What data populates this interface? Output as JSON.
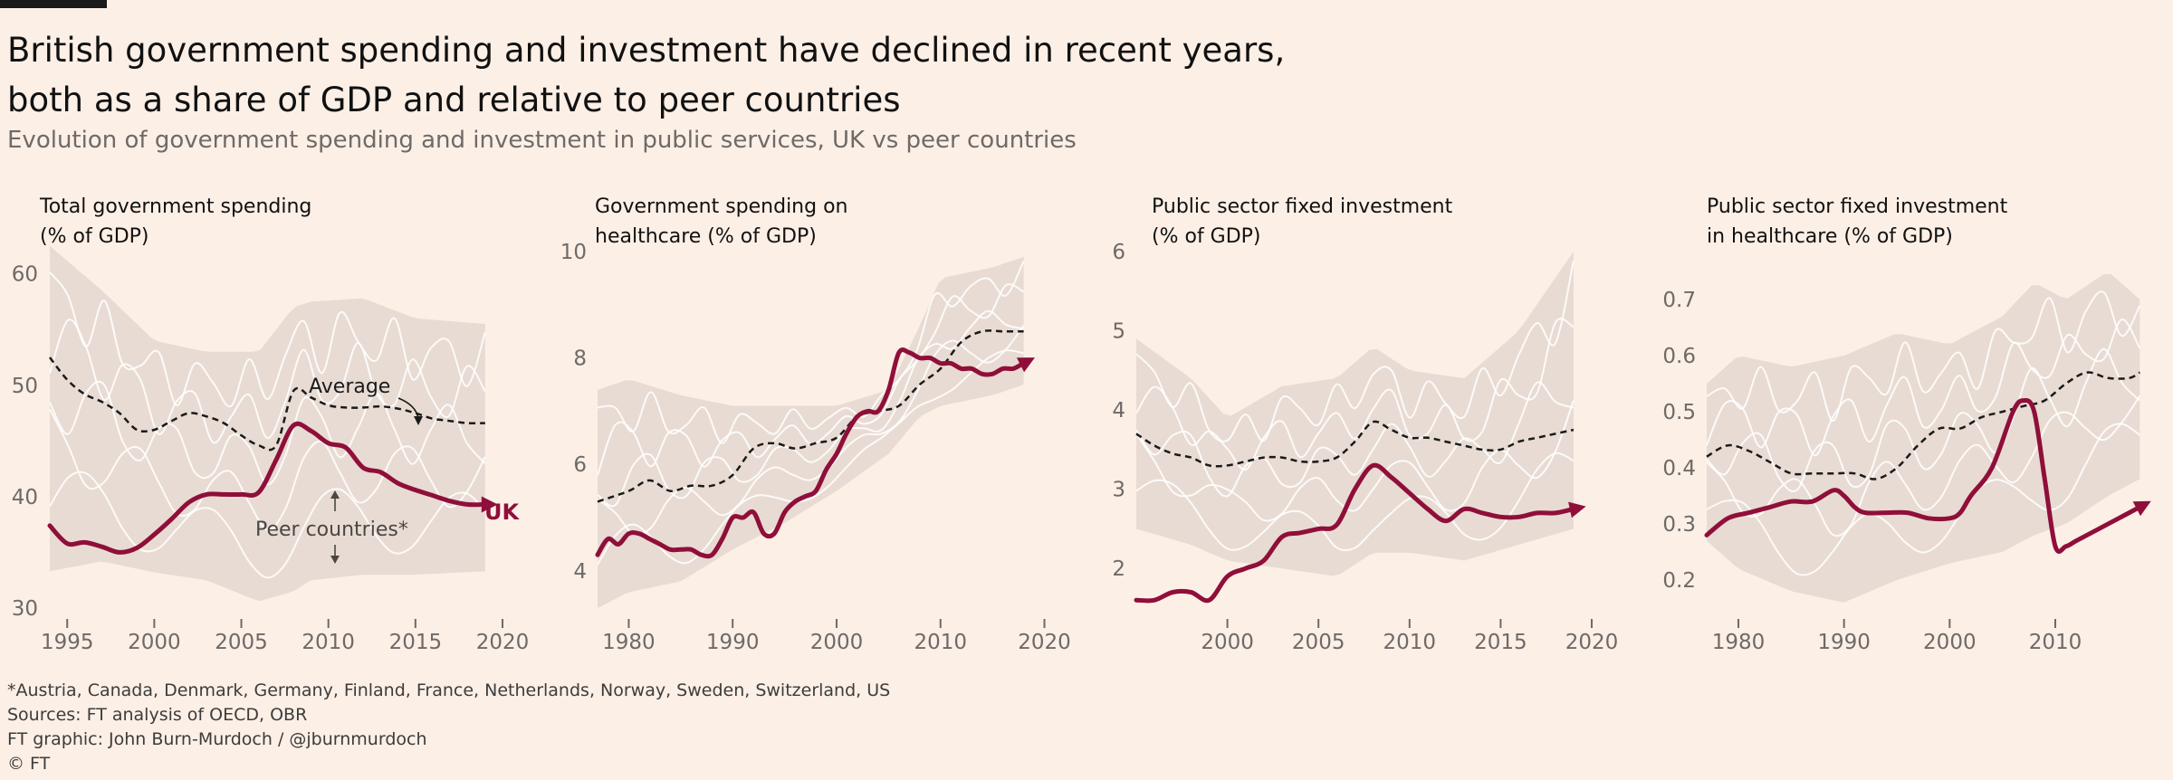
{
  "header": {
    "title_line1": "British government spending and investment have declined in recent years,",
    "title_line2": "both as a share of GDP and relative to peer countries",
    "subtitle": "Evolution of government spending and investment in public services, UK vs peer countries"
  },
  "colors": {
    "background": "#fcefe6",
    "uk_line": "#8f0f3a",
    "average_line": "#1a1a1a",
    "peer_band": "#e8dbd3",
    "peer_lines": "#ffffff"
  },
  "annotations": {
    "average": "Average",
    "peer_countries": "Peer countries*",
    "uk": "UK"
  },
  "footer": {
    "note": "*Austria, Canada, Denmark, Germany, Finland, France, Netherlands, Norway, Sweden, Switzerland, US",
    "sources": "Sources: FT analysis of OECD, OBR",
    "credit": "FT graphic: John Burn-Murdoch / @jburnmurdoch",
    "copyright": "© FT"
  },
  "chart_data": [
    {
      "type": "line",
      "title": "Total government spending",
      "title_unit": "(% of GDP)",
      "xlim": [
        1994,
        2020
      ],
      "ylim": [
        30,
        62
      ],
      "x_ticks": [
        1995,
        2000,
        2005,
        2010,
        2015,
        2020
      ],
      "y_ticks": [
        30,
        40,
        50,
        60
      ],
      "series": [
        {
          "name": "UK",
          "x": [
            1994,
            1995,
            1996,
            1997,
            1998,
            1999,
            2000,
            2001,
            2002,
            2003,
            2004,
            2005,
            2006,
            2007,
            2008,
            2009,
            2010,
            2011,
            2012,
            2013,
            2014,
            2015,
            2016,
            2017,
            2018,
            2019
          ],
          "y": [
            37.4,
            35.8,
            35.9,
            35.5,
            35.0,
            35.4,
            36.6,
            38.0,
            39.5,
            40.2,
            40.2,
            40.2,
            40.4,
            43.3,
            46.4,
            45.9,
            44.8,
            44.4,
            42.6,
            42.2,
            41.2,
            40.6,
            40.1,
            39.6,
            39.3,
            39.3
          ]
        },
        {
          "name": "Average",
          "x": [
            1994,
            1995,
            1996,
            1997,
            1998,
            1999,
            2000,
            2001,
            2002,
            2003,
            2004,
            2005,
            2006,
            2007,
            2008,
            2009,
            2010,
            2011,
            2012,
            2013,
            2014,
            2015,
            2016,
            2017,
            2018,
            2019
          ],
          "y": [
            52.5,
            50.5,
            49.2,
            48.5,
            47.5,
            46.0,
            46.0,
            46.8,
            47.5,
            47.2,
            46.6,
            45.5,
            44.6,
            44.6,
            49.5,
            48.9,
            48.2,
            48.0,
            48.0,
            48.1,
            47.9,
            47.5,
            47.0,
            46.8,
            46.6,
            46.6
          ]
        }
      ],
      "peer_band": {
        "x": [
          1994,
          1997,
          2000,
          2003,
          2006,
          2008,
          2009,
          2012,
          2015,
          2019
        ],
        "upper": [
          62.5,
          58.5,
          54,
          53,
          53,
          57,
          57.5,
          57.8,
          56,
          55.5
        ],
        "lower": [
          33.3,
          34.2,
          33.2,
          32.5,
          30.6,
          31.5,
          32.5,
          33,
          33,
          33.3
        ]
      }
    },
    {
      "type": "line",
      "title": "Government spending on",
      "title_unit": "healthcare (% of GDP)",
      "xlim": [
        1977,
        2021
      ],
      "ylim": [
        3.3,
        10
      ],
      "x_ticks": [
        1980,
        1990,
        2000,
        2010,
        2020
      ],
      "y_ticks": [
        4,
        6,
        8,
        10
      ],
      "series": [
        {
          "name": "UK",
          "x": [
            1977,
            1978,
            1979,
            1980,
            1981,
            1982,
            1983,
            1984,
            1985,
            1986,
            1987,
            1988,
            1989,
            1990,
            1991,
            1992,
            1993,
            1994,
            1995,
            1996,
            1997,
            1998,
            1999,
            2000,
            2001,
            2002,
            2003,
            2004,
            2005,
            2006,
            2007,
            2008,
            2009,
            2010,
            2011,
            2012,
            2013,
            2014,
            2015,
            2016,
            2017,
            2018
          ],
          "y": [
            4.3,
            4.6,
            4.5,
            4.7,
            4.7,
            4.6,
            4.5,
            4.4,
            4.4,
            4.4,
            4.3,
            4.3,
            4.6,
            5.0,
            5.0,
            5.1,
            4.7,
            4.7,
            5.1,
            5.3,
            5.4,
            5.5,
            5.9,
            6.2,
            6.6,
            6.9,
            7.0,
            7.0,
            7.4,
            8.1,
            8.1,
            8.0,
            8.0,
            7.9,
            7.9,
            7.8,
            7.8,
            7.7,
            7.7,
            7.8,
            7.8,
            7.9
          ]
        },
        {
          "name": "Average",
          "x": [
            1977,
            1980,
            1982,
            1984,
            1986,
            1988,
            1990,
            1992,
            1994,
            1996,
            1998,
            2000,
            2002,
            2004,
            2006,
            2008,
            2010,
            2012,
            2014,
            2016,
            2018
          ],
          "y": [
            5.3,
            5.5,
            5.7,
            5.5,
            5.6,
            5.6,
            5.8,
            6.3,
            6.4,
            6.3,
            6.4,
            6.5,
            6.9,
            7.0,
            7.1,
            7.5,
            7.8,
            8.3,
            8.5,
            8.5,
            8.5
          ]
        }
      ],
      "peer_band": {
        "x": [
          1977,
          1980,
          1985,
          1990,
          1995,
          2000,
          2005,
          2008,
          2010,
          2015,
          2018
        ],
        "upper": [
          7.4,
          7.6,
          7.3,
          7.1,
          7.1,
          7.1,
          7.4,
          8.6,
          9.5,
          9.7,
          9.9
        ],
        "lower": [
          3.3,
          3.6,
          3.8,
          4.4,
          4.9,
          5.5,
          6.2,
          6.9,
          7.1,
          7.3,
          7.5
        ]
      }
    },
    {
      "type": "line",
      "title": "Public sector fixed investment",
      "title_unit": "(% of GDP)",
      "xlim": [
        1995,
        2020
      ],
      "ylim": [
        1.5,
        6
      ],
      "x_ticks": [
        2000,
        2005,
        2010,
        2015,
        2020
      ],
      "y_ticks": [
        2,
        3,
        4,
        5,
        6
      ],
      "series": [
        {
          "name": "UK",
          "x": [
            1995,
            1996,
            1997,
            1998,
            1999,
            2000,
            2001,
            2002,
            2003,
            2004,
            2005,
            2006,
            2007,
            2008,
            2009,
            2010,
            2011,
            2012,
            2013,
            2014,
            2015,
            2016,
            2017,
            2018,
            2019
          ],
          "y": [
            1.6,
            1.6,
            1.7,
            1.7,
            1.6,
            1.9,
            2.0,
            2.1,
            2.4,
            2.45,
            2.5,
            2.55,
            3.0,
            3.3,
            3.15,
            2.95,
            2.75,
            2.6,
            2.75,
            2.7,
            2.65,
            2.65,
            2.7,
            2.7,
            2.75
          ]
        },
        {
          "name": "Average",
          "x": [
            1995,
            1996,
            1997,
            1998,
            1999,
            2000,
            2001,
            2002,
            2003,
            2004,
            2005,
            2006,
            2007,
            2008,
            2009,
            2010,
            2011,
            2012,
            2013,
            2014,
            2015,
            2016,
            2017,
            2018,
            2019
          ],
          "y": [
            3.7,
            3.55,
            3.45,
            3.4,
            3.3,
            3.3,
            3.35,
            3.4,
            3.4,
            3.35,
            3.35,
            3.4,
            3.6,
            3.85,
            3.75,
            3.65,
            3.65,
            3.6,
            3.55,
            3.5,
            3.5,
            3.6,
            3.65,
            3.7,
            3.75
          ]
        }
      ],
      "peer_band": {
        "x": [
          1995,
          1998,
          2000,
          2003,
          2006,
          2008,
          2010,
          2013,
          2016,
          2019
        ],
        "upper": [
          4.9,
          4.4,
          3.9,
          4.3,
          4.4,
          4.8,
          4.5,
          4.4,
          5.0,
          6.0
        ],
        "lower": [
          2.5,
          2.3,
          2.1,
          2.0,
          1.9,
          2.2,
          2.2,
          2.1,
          2.3,
          2.5
        ]
      }
    },
    {
      "type": "line",
      "title": "Public sector fixed investment",
      "title_unit": "in healthcare (% of GDP)",
      "xlim": [
        1977,
        2019
      ],
      "ylim": [
        0.15,
        0.75
      ],
      "x_ticks": [
        1980,
        1990,
        2000,
        2010
      ],
      "y_ticks": [
        0.2,
        0.3,
        0.4,
        0.5,
        0.6,
        0.7
      ],
      "series": [
        {
          "name": "UK",
          "x": [
            1977,
            1979,
            1981,
            1983,
            1985,
            1987,
            1989,
            1990,
            1991,
            1992,
            1994,
            1996,
            1998,
            2000,
            2001,
            2002,
            2004,
            2006,
            2007,
            2008,
            2009,
            2010,
            2011,
            2012,
            2014,
            2016,
            2018
          ],
          "y": [
            0.28,
            0.31,
            0.32,
            0.33,
            0.34,
            0.34,
            0.36,
            0.35,
            0.33,
            0.32,
            0.32,
            0.32,
            0.31,
            0.31,
            0.32,
            0.35,
            0.4,
            0.5,
            0.52,
            0.5,
            0.38,
            0.26,
            0.26,
            0.27,
            0.29,
            0.31,
            0.33
          ]
        },
        {
          "name": "Average",
          "x": [
            1977,
            1979,
            1981,
            1983,
            1985,
            1987,
            1989,
            1991,
            1993,
            1995,
            1997,
            1999,
            2001,
            2003,
            2005,
            2007,
            2009,
            2011,
            2013,
            2015,
            2017,
            2018
          ],
          "y": [
            0.42,
            0.44,
            0.43,
            0.41,
            0.39,
            0.39,
            0.39,
            0.39,
            0.38,
            0.4,
            0.44,
            0.47,
            0.47,
            0.49,
            0.5,
            0.51,
            0.52,
            0.55,
            0.57,
            0.56,
            0.56,
            0.57
          ]
        }
      ],
      "peer_band": {
        "x": [
          1977,
          1980,
          1985,
          1990,
          1995,
          2000,
          2005,
          2008,
          2011,
          2015,
          2018
        ],
        "upper": [
          0.55,
          0.6,
          0.58,
          0.6,
          0.64,
          0.62,
          0.67,
          0.73,
          0.7,
          0.75,
          0.7
        ],
        "lower": [
          0.27,
          0.22,
          0.18,
          0.16,
          0.2,
          0.23,
          0.25,
          0.28,
          0.3,
          0.35,
          0.38
        ]
      }
    }
  ]
}
